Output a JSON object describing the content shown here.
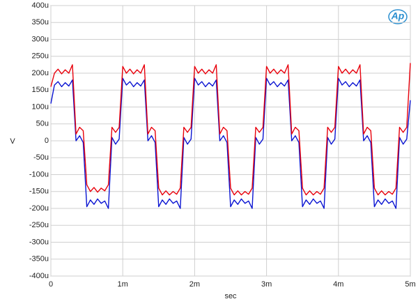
{
  "chart_data": {
    "type": "line",
    "logo": "Ap",
    "x_label": "sec",
    "y_label": "V",
    "grid": true,
    "xlim": [
      0,
      0.005
    ],
    "ylim": [
      -0.0004,
      0.0004
    ],
    "xticks": [
      0,
      {
        "value": 0.001,
        "label": "1m"
      },
      {
        "value": 0.002,
        "label": "2m"
      },
      {
        "value": 0.003,
        "label": "3m"
      },
      {
        "value": 0.004,
        "label": "4m"
      },
      {
        "value": 0.005,
        "label": "5m"
      }
    ],
    "yticks": [
      {
        "value": 0.0004,
        "label": "400u"
      },
      {
        "value": 0.00035,
        "label": "350u"
      },
      {
        "value": 0.0003,
        "label": "300u"
      },
      {
        "value": 0.00025,
        "label": "250u"
      },
      {
        "value": 0.0002,
        "label": "200u"
      },
      {
        "value": 0.00015,
        "label": "150u"
      },
      {
        "value": 0.0001,
        "label": "100u"
      },
      {
        "value": 5e-05,
        "label": "50u"
      },
      0,
      {
        "value": -5e-05,
        "label": "-50u"
      },
      {
        "value": -0.0001,
        "label": "-100u"
      },
      {
        "value": -0.00015,
        "label": "-150u"
      },
      {
        "value": -0.0002,
        "label": "-200u"
      },
      {
        "value": -0.00025,
        "label": "-250u"
      },
      {
        "value": -0.0003,
        "label": "-300u"
      },
      {
        "value": -0.00035,
        "label": "-350u"
      },
      {
        "value": -0.0004,
        "label": "-400u"
      }
    ],
    "x": [
      0,
      5e-05,
      0.0001,
      0.00015,
      0.0002,
      0.00025,
      0.0003,
      0.00035,
      0.0004,
      0.00045,
      0.0005,
      0.00055,
      0.0006,
      0.00065,
      0.0007,
      0.00075,
      0.0008,
      0.00085,
      0.0009,
      0.00095,
      0.001,
      0.00105,
      0.0011,
      0.00115,
      0.0012,
      0.00125,
      0.0013,
      0.00135,
      0.0014,
      0.00145,
      0.0015,
      0.00155,
      0.0016,
      0.00165,
      0.0017,
      0.00175,
      0.0018,
      0.00185,
      0.0019,
      0.00195,
      0.002,
      0.00205,
      0.0021,
      0.00215,
      0.0022,
      0.00225,
      0.0023,
      0.00235,
      0.0024,
      0.00245,
      0.0025,
      0.00255,
      0.0026,
      0.00265,
      0.0027,
      0.00275,
      0.0028,
      0.00285,
      0.0029,
      0.00295,
      0.003,
      0.00305,
      0.0031,
      0.00315,
      0.0032,
      0.00325,
      0.0033,
      0.00335,
      0.0034,
      0.00345,
      0.0035,
      0.00355,
      0.0036,
      0.00365,
      0.0037,
      0.00375,
      0.0038,
      0.00385,
      0.0039,
      0.00395,
      0.004,
      0.00405,
      0.0041,
      0.00415,
      0.0042,
      0.00425,
      0.0043,
      0.00435,
      0.0044,
      0.00445,
      0.0045,
      0.00455,
      0.0046,
      0.00465,
      0.0047,
      0.00475,
      0.0048,
      0.00485,
      0.0049,
      0.00495,
      0.005
    ],
    "series": [
      {
        "color": "#e8000b",
        "values": [
          0.00016,
          0.0002,
          0.000212,
          0.000198,
          0.00021,
          0.0002,
          0.000225,
          2e-05,
          4e-05,
          3e-05,
          -0.00013,
          -0.00015,
          -0.000138,
          -0.000152,
          -0.00014,
          -0.000148,
          -0.00013,
          4e-05,
          2.5e-05,
          4e-05,
          0.00022,
          0.0002,
          0.000212,
          0.000198,
          0.00021,
          0.0002,
          0.000225,
          2e-05,
          4e-05,
          3e-05,
          -0.00014,
          -0.00016,
          -0.000148,
          -0.00016,
          -0.00015,
          -0.000158,
          -0.00014,
          4e-05,
          2.5e-05,
          4e-05,
          0.00022,
          0.0002,
          0.000212,
          0.000198,
          0.00021,
          0.0002,
          0.000225,
          2e-05,
          4e-05,
          3e-05,
          -0.00014,
          -0.00016,
          -0.000148,
          -0.00016,
          -0.00015,
          -0.000158,
          -0.00014,
          4e-05,
          2.5e-05,
          4e-05,
          0.00022,
          0.0002,
          0.000212,
          0.000198,
          0.00021,
          0.0002,
          0.000225,
          2e-05,
          4e-05,
          3e-05,
          -0.00014,
          -0.00016,
          -0.000148,
          -0.00016,
          -0.00015,
          -0.000158,
          -0.00014,
          4e-05,
          2.5e-05,
          4e-05,
          0.00022,
          0.0002,
          0.000212,
          0.000198,
          0.00021,
          0.0002,
          0.000225,
          2e-05,
          4e-05,
          3e-05,
          -0.00014,
          -0.00016,
          -0.000148,
          -0.00016,
          -0.00015,
          -0.000158,
          -0.00014,
          4e-05,
          2.5e-05,
          4e-05,
          0.00023
        ]
      },
      {
        "color": "#0a14d2",
        "values": [
          0.00011,
          0.000165,
          0.000175,
          0.00016,
          0.000172,
          0.000162,
          0.00018,
          0,
          1.5e-05,
          -5e-06,
          -0.000195,
          -0.000175,
          -0.000188,
          -0.000172,
          -0.000185,
          -0.000178,
          -0.0002,
          1e-05,
          -1e-05,
          5e-06,
          0.000185,
          0.000165,
          0.000175,
          0.00016,
          0.000172,
          0.000162,
          0.00018,
          0,
          1.5e-05,
          -5e-06,
          -0.000195,
          -0.000175,
          -0.000188,
          -0.000172,
          -0.000185,
          -0.000178,
          -0.0002,
          1e-05,
          -1e-05,
          5e-06,
          0.000185,
          0.000165,
          0.000175,
          0.00016,
          0.000172,
          0.000162,
          0.00018,
          0,
          1.5e-05,
          -5e-06,
          -0.000195,
          -0.000175,
          -0.000188,
          -0.000172,
          -0.000185,
          -0.000178,
          -0.0002,
          1e-05,
          -1e-05,
          5e-06,
          0.000185,
          0.000165,
          0.000175,
          0.00016,
          0.000172,
          0.000162,
          0.00018,
          0,
          1.5e-05,
          -5e-06,
          -0.000195,
          -0.000175,
          -0.000188,
          -0.000172,
          -0.000185,
          -0.000178,
          -0.0002,
          1e-05,
          -1e-05,
          5e-06,
          0.000185,
          0.000165,
          0.000175,
          0.00016,
          0.000172,
          0.000162,
          0.00018,
          0,
          1.5e-05,
          -5e-06,
          -0.000195,
          -0.000175,
          -0.000188,
          -0.000172,
          -0.000185,
          -0.000178,
          -0.0002,
          1e-05,
          -1e-05,
          5e-06,
          0.00012
        ]
      }
    ]
  }
}
